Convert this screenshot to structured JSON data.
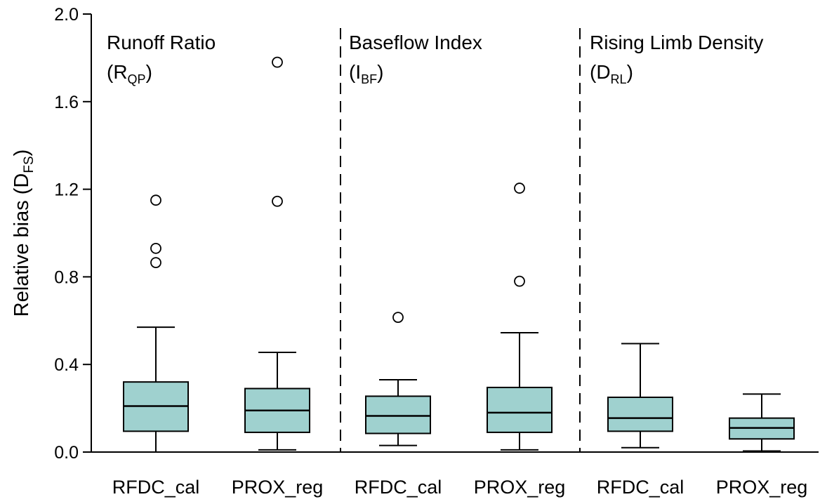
{
  "chart_data": {
    "type": "box",
    "ylabel": "Relative bias (D",
    "ylabel_sub": "FS",
    "ylabel_close": ")",
    "ylim": [
      0.0,
      2.0
    ],
    "yticks": [
      "0.0",
      "0.4",
      "0.8",
      "1.2",
      "1.6",
      "2.0"
    ],
    "categories": [
      "RFDC_cal",
      "PROX_reg",
      "RFDC_cal",
      "PROX_reg",
      "RFDC_cal",
      "PROX_reg"
    ],
    "box_color": "#9fd1cf",
    "panels": [
      {
        "title": "Runoff Ratio",
        "symbol": "(R",
        "symbol_sub": "QP",
        "symbol_close": ")",
        "boxes": [
          {
            "category": "RFDC_cal",
            "whisker_low": 0.0,
            "q1": 0.095,
            "median": 0.21,
            "q3": 0.32,
            "whisker_high": 0.57,
            "outliers": [
              1.15,
              0.93,
              0.865
            ]
          },
          {
            "category": "PROX_reg",
            "whisker_low": 0.01,
            "q1": 0.09,
            "median": 0.19,
            "q3": 0.29,
            "whisker_high": 0.455,
            "outliers": [
              1.78,
              1.145
            ]
          }
        ]
      },
      {
        "title": "Baseflow Index",
        "symbol": "(I",
        "symbol_sub": "BF",
        "symbol_close": ")",
        "boxes": [
          {
            "category": "RFDC_cal",
            "whisker_low": 0.03,
            "q1": 0.085,
            "median": 0.165,
            "q3": 0.255,
            "whisker_high": 0.33,
            "outliers": [
              0.615
            ]
          },
          {
            "category": "PROX_reg",
            "whisker_low": 0.01,
            "q1": 0.09,
            "median": 0.18,
            "q3": 0.295,
            "whisker_high": 0.545,
            "outliers": [
              1.205,
              0.78
            ]
          }
        ]
      },
      {
        "title": "Rising Limb Density",
        "symbol": "(D",
        "symbol_sub": "RL",
        "symbol_close": ")",
        "boxes": [
          {
            "category": "RFDC_cal",
            "whisker_low": 0.02,
            "q1": 0.095,
            "median": 0.155,
            "q3": 0.25,
            "whisker_high": 0.495,
            "outliers": []
          },
          {
            "category": "PROX_reg",
            "whisker_low": 0.005,
            "q1": 0.06,
            "median": 0.11,
            "q3": 0.155,
            "whisker_high": 0.265,
            "outliers": []
          }
        ]
      }
    ]
  }
}
